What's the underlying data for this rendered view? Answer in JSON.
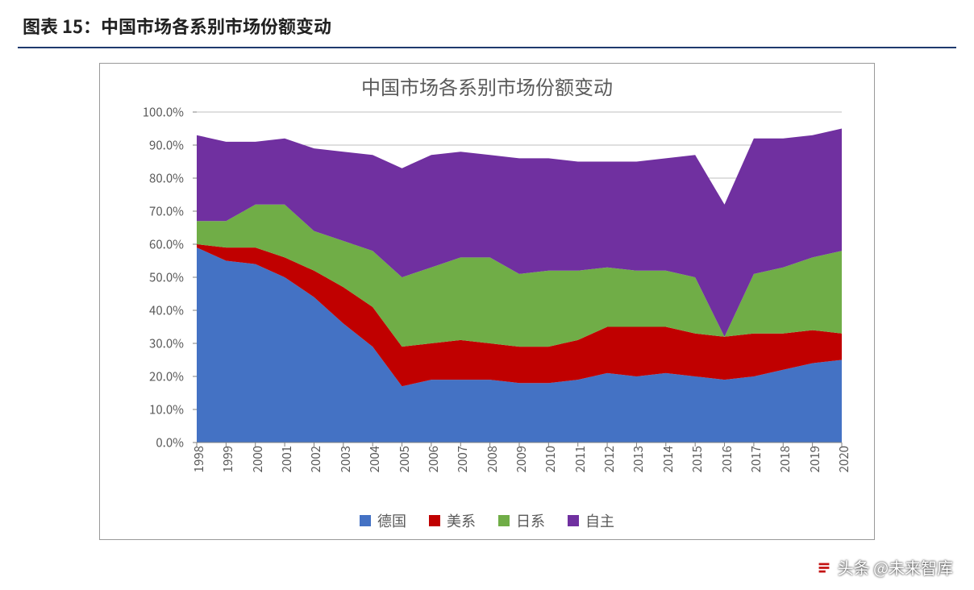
{
  "header": {
    "title": "图表 15：中国市场各系别市场份额变动"
  },
  "chart": {
    "type": "area",
    "title": "中国市场各系别市场份额变动",
    "title_color": "#5a5a5a",
    "title_fontsize": 24,
    "frame_border_color": "#999999",
    "plot_background": "#ffffff",
    "gridline_color": "#bfbfbf",
    "axis_line_color": "#808080",
    "tick_color": "#808080",
    "label_color": "#5a5a5a",
    "label_fontsize": 15,
    "x_categories": [
      "1998",
      "1999",
      "2000",
      "2001",
      "2002",
      "2003",
      "2004",
      "2005",
      "2006",
      "2007",
      "2008",
      "2009",
      "2010",
      "2011",
      "2012",
      "2013",
      "2014",
      "2015",
      "2016",
      "2017",
      "2018",
      "2019",
      "2020"
    ],
    "y": {
      "min": 0.0,
      "max": 100.0,
      "tick_step": 10.0,
      "suffix": "%",
      "decimals": 1
    },
    "series": [
      {
        "key": "germany",
        "label": "德国",
        "color": "#4472c4",
        "values": [
          59,
          55,
          54,
          50,
          44,
          36,
          29,
          17,
          19,
          19,
          19,
          18,
          18,
          19,
          21,
          20,
          21,
          20,
          19,
          20,
          22,
          24,
          25
        ]
      },
      {
        "key": "us",
        "label": "美系",
        "color": "#c00000",
        "values": [
          1,
          4,
          5,
          6,
          8,
          11,
          12,
          12,
          11,
          12,
          11,
          11,
          11,
          12,
          14,
          15,
          14,
          13,
          13,
          13,
          11,
          10,
          8
        ]
      },
      {
        "key": "japan",
        "label": "日系",
        "color": "#70ad47",
        "values": [
          7,
          8,
          13,
          16,
          12,
          14,
          17,
          21,
          23,
          25,
          26,
          22,
          23,
          21,
          18,
          17,
          17,
          17,
          0,
          18,
          20,
          22,
          25
        ]
      },
      {
        "key": "domestic",
        "label": "自主",
        "color": "#7030a0",
        "values": [
          26,
          24,
          19,
          20,
          25,
          27,
          29,
          33,
          34,
          32,
          31,
          35,
          34,
          33,
          32,
          33,
          34,
          37,
          40,
          41,
          39,
          37,
          37
        ]
      }
    ],
    "legend": {
      "marker_size": 14,
      "fontsize": 18,
      "color": "#5a5a5a"
    }
  },
  "watermark": {
    "text": "头条 @未来智库",
    "color": "#ffffff"
  }
}
